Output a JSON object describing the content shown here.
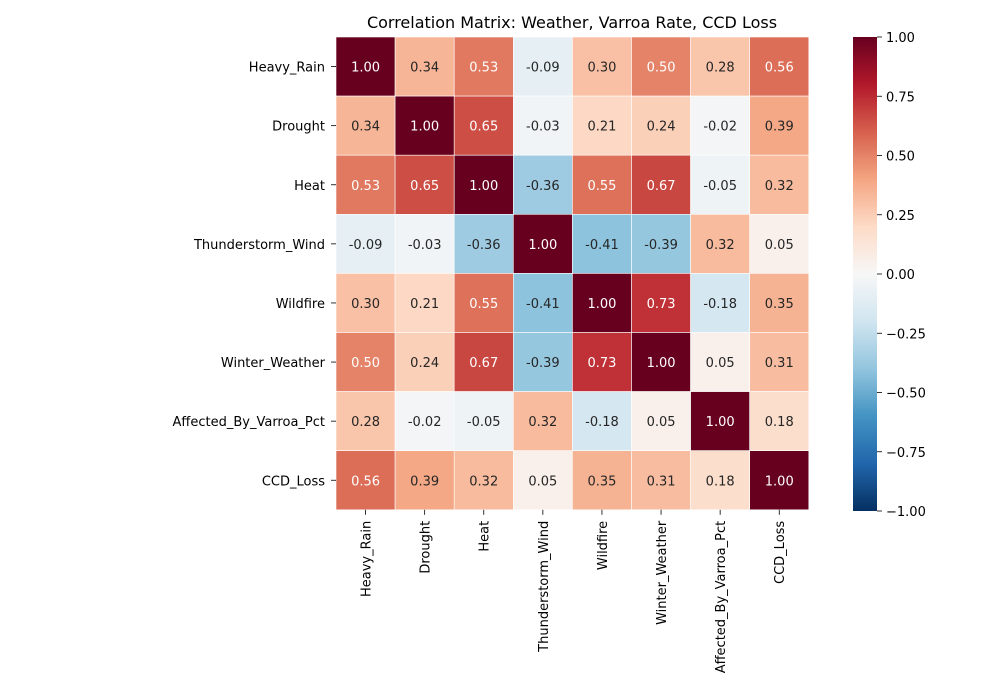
{
  "chart_data": {
    "type": "heatmap",
    "title": "Correlation Matrix: Weather, Varroa Rate, CCD Loss",
    "row_labels": [
      "Heavy_Rain",
      "Drought",
      "Heat",
      "Thunderstorm_Wind",
      "Wildfire",
      "Winter_Weather",
      "Affected_By_Varroa_Pct",
      "CCD_Loss"
    ],
    "col_labels": [
      "Heavy_Rain",
      "Drought",
      "Heat",
      "Thunderstorm_Wind",
      "Wildfire",
      "Winter_Weather",
      "Affected_By_Varroa_Pct",
      "CCD_Loss"
    ],
    "values": [
      [
        1.0,
        0.34,
        0.53,
        -0.09,
        0.3,
        0.5,
        0.28,
        0.56
      ],
      [
        0.34,
        1.0,
        0.65,
        -0.03,
        0.21,
        0.24,
        -0.02,
        0.39
      ],
      [
        0.53,
        0.65,
        1.0,
        -0.36,
        0.55,
        0.67,
        -0.05,
        0.32
      ],
      [
        -0.09,
        -0.03,
        -0.36,
        1.0,
        -0.41,
        -0.39,
        0.32,
        0.05
      ],
      [
        0.3,
        0.21,
        0.55,
        -0.41,
        1.0,
        0.73,
        -0.18,
        0.35
      ],
      [
        0.5,
        0.24,
        0.67,
        -0.39,
        0.73,
        1.0,
        0.05,
        0.31
      ],
      [
        0.28,
        -0.02,
        -0.05,
        0.32,
        -0.18,
        0.05,
        1.0,
        0.18
      ],
      [
        0.56,
        0.39,
        0.32,
        0.05,
        0.35,
        0.31,
        0.18,
        1.0
      ]
    ],
    "value_labels": [
      [
        "1.00",
        "0.34",
        "0.53",
        "-0.09",
        "0.30",
        "0.50",
        "0.28",
        "0.56"
      ],
      [
        "0.34",
        "1.00",
        "0.65",
        "-0.03",
        "0.21",
        "0.24",
        "-0.02",
        "0.39"
      ],
      [
        "0.53",
        "0.65",
        "1.00",
        "-0.36",
        "0.55",
        "0.67",
        "-0.05",
        "0.32"
      ],
      [
        "-0.09",
        "-0.03",
        "-0.36",
        "1.00",
        "-0.41",
        "-0.39",
        "0.32",
        "0.05"
      ],
      [
        "0.30",
        "0.21",
        "0.55",
        "-0.41",
        "1.00",
        "0.73",
        "-0.18",
        "0.35"
      ],
      [
        "0.50",
        "0.24",
        "0.67",
        "-0.39",
        "0.73",
        "1.00",
        "0.05",
        "0.31"
      ],
      [
        "0.28",
        "-0.02",
        "-0.05",
        "0.32",
        "-0.18",
        "0.05",
        "1.00",
        "0.18"
      ],
      [
        "0.56",
        "0.39",
        "0.32",
        "0.05",
        "0.35",
        "0.31",
        "0.18",
        "1.00"
      ]
    ],
    "colorbar": {
      "vmin": -1.0,
      "vmax": 1.0,
      "ticks": [
        1.0,
        0.75,
        0.5,
        0.25,
        0.0,
        -0.25,
        -0.5,
        -0.75,
        -1.0
      ],
      "tick_labels": [
        "1.00",
        "0.75",
        "0.50",
        "0.25",
        "0.00",
        "−0.25",
        "−0.50",
        "−0.75",
        "−1.00"
      ]
    },
    "colormap": "RdBu_r",
    "colormap_stops": [
      "#053061",
      "#2166ac",
      "#4393c3",
      "#92c5de",
      "#d1e5f0",
      "#f7f7f7",
      "#fddbc7",
      "#f4a582",
      "#d6604d",
      "#b2182b",
      "#67001f"
    ],
    "cell_border_color": "#ffffff",
    "annotation_dark_text_color": "#262626",
    "annotation_light_text_color": "#ffffff",
    "grid": false,
    "legend": "colorbar-right"
  }
}
